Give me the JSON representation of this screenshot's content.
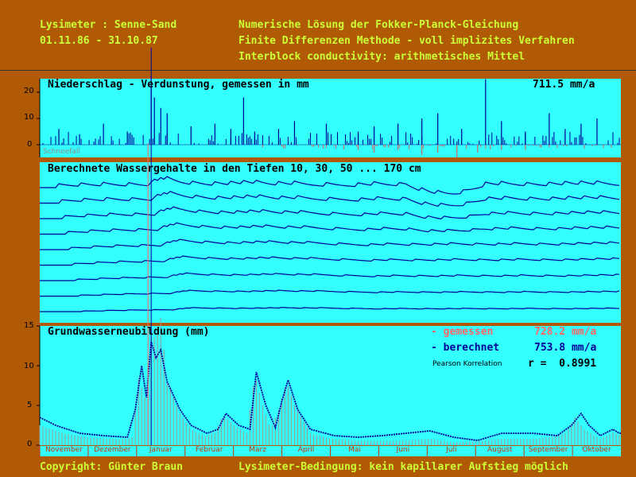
{
  "header": {
    "site": "Lysimeter : Senne-Sand",
    "period": "01.11.86 - 31.10.87",
    "line1": "Numerische Lösung der Fokker-Planck-Gleichung",
    "line2": "Finite Differenzen Methode - voll implizites Verfahren",
    "line3": "Interblock conductivity: arithmetisches Mittel"
  },
  "colors": {
    "background": "#b05a06",
    "panel": "#33ffff",
    "header_text": "#ccff33",
    "measured": "#ff6666",
    "computed": "#000099",
    "months": "#cc3300"
  },
  "panel1": {
    "title": "Niederschlag - Verdunstung, gemessen in mm",
    "total": "711.5 mm/a",
    "note": "Schneefall",
    "yticks": [
      "20",
      "10",
      "0"
    ]
  },
  "panel2": {
    "title": "Berechnete Wassergehalte in den Tiefen 10, 30, 50 ... 170 cm"
  },
  "panel3": {
    "title": "Grundwasserneubildung (mm)",
    "legend_measured": "- gemessen",
    "legend_measured_value": "728.2 mm/a",
    "legend_computed": "- berechnet",
    "legend_computed_value": "753.8 mm/a",
    "pearson_label": "Pearson Korrelation",
    "r_value": "r =  0.8991",
    "yticks": [
      "15",
      "10",
      "5",
      "0"
    ]
  },
  "months": [
    "November",
    "Dezember",
    "Januar",
    "Februar",
    "Marz",
    "April",
    "Mai",
    "Juni",
    "Juli",
    "August",
    "September",
    "Oktober"
  ],
  "footer": {
    "copyright": "Copyright: Günter Braun",
    "condition": "Lysimeter-Bedingung: kein kapillarer Aufstieg möglich"
  },
  "chart_data": [
    {
      "type": "bar",
      "title": "Niederschlag - Verdunstung, gemessen in mm",
      "ylabel": "mm",
      "ylim": [
        -5,
        25
      ],
      "x_unit": "day of hydrological year (1 = 01.11.86)",
      "total": "711.5 mm/a",
      "precipitation_peaks": [
        [
          12,
          6
        ],
        [
          25,
          4
        ],
        [
          40,
          8
        ],
        [
          55,
          5
        ],
        [
          70,
          26
        ],
        [
          72,
          18
        ],
        [
          76,
          14
        ],
        [
          80,
          12
        ],
        [
          95,
          7
        ],
        [
          110,
          8
        ],
        [
          120,
          6
        ],
        [
          128,
          18
        ],
        [
          135,
          5
        ],
        [
          150,
          6
        ],
        [
          160,
          9
        ],
        [
          180,
          8
        ],
        [
          200,
          5
        ],
        [
          210,
          7
        ],
        [
          225,
          8
        ],
        [
          240,
          10
        ],
        [
          250,
          12
        ],
        [
          265,
          6
        ],
        [
          280,
          25
        ],
        [
          290,
          9
        ],
        [
          305,
          5
        ],
        [
          320,
          12
        ],
        [
          330,
          6
        ],
        [
          340,
          8
        ],
        [
          350,
          10
        ]
      ],
      "evaporation": [
        [
          140,
          -1
        ],
        [
          200,
          -2
        ],
        [
          210,
          -3
        ],
        [
          225,
          -2
        ],
        [
          240,
          -4
        ],
        [
          250,
          -3
        ],
        [
          262,
          -5
        ],
        [
          275,
          -3
        ],
        [
          290,
          -2
        ],
        [
          305,
          -2
        ],
        [
          320,
          -1
        ]
      ]
    },
    {
      "type": "line",
      "title": "Berechnete Wassergehalte in den Tiefen 10, 30, 50 ... 170 cm",
      "depths_cm": [
        10,
        30,
        50,
        70,
        90,
        110,
        130,
        150,
        170
      ]
    },
    {
      "type": "line",
      "title": "Grundwasserneubildung (mm)",
      "ylim": [
        0,
        15
      ],
      "x_unit": "day of hydrological year (1 = 01.11.86)",
      "series": [
        {
          "name": "gemessen",
          "total": "728.2 mm/a",
          "points": [
            [
              0,
              2.5
            ],
            [
              15,
              1.5
            ],
            [
              30,
              1.0
            ],
            [
              50,
              0.7
            ],
            [
              58,
              1.0
            ],
            [
              62,
              8.5
            ],
            [
              66,
              6
            ],
            [
              70,
              14.5
            ],
            [
              72,
              13.5
            ],
            [
              76,
              16
            ],
            [
              80,
              8
            ],
            [
              88,
              4
            ],
            [
              95,
              2
            ],
            [
              103,
              1.2
            ],
            [
              110,
              1.5
            ],
            [
              115,
              3.8
            ],
            [
              122,
              2.5
            ],
            [
              130,
              1.5
            ],
            [
              135,
              9.0
            ],
            [
              140,
              5
            ],
            [
              145,
              2
            ],
            [
              150,
              4.5
            ],
            [
              155,
              8.0
            ],
            [
              160,
              5
            ],
            [
              170,
              1.5
            ],
            [
              185,
              0.7
            ],
            [
              200,
              0.6
            ],
            [
              230,
              0.6
            ],
            [
              245,
              0.8
            ],
            [
              260,
              0.4
            ],
            [
              275,
              0.5
            ],
            [
              290,
              0.8
            ],
            [
              310,
              0.8
            ],
            [
              320,
              1.0
            ],
            [
              330,
              1.5
            ],
            [
              336,
              3.5
            ],
            [
              342,
              2.0
            ],
            [
              352,
              0.8
            ],
            [
              360,
              1.6
            ],
            [
              364,
              1.3
            ]
          ]
        },
        {
          "name": "berechnet",
          "total": "753.8 mm/a",
          "points": [
            [
              0,
              3.5
            ],
            [
              10,
              2.5
            ],
            [
              25,
              1.5
            ],
            [
              40,
              1.2
            ],
            [
              55,
              1.0
            ],
            [
              60,
              4.5
            ],
            [
              64,
              10.0
            ],
            [
              67,
              6
            ],
            [
              70,
              13
            ],
            [
              73,
              11
            ],
            [
              76,
              12
            ],
            [
              80,
              8
            ],
            [
              88,
              4.5
            ],
            [
              95,
              2.5
            ],
            [
              105,
              1.5
            ],
            [
              112,
              2.0
            ],
            [
              117,
              4.0
            ],
            [
              125,
              2.5
            ],
            [
              132,
              2.0
            ],
            [
              136,
              9.2
            ],
            [
              142,
              5
            ],
            [
              148,
              2.2
            ],
            [
              152,
              5.5
            ],
            [
              156,
              8.2
            ],
            [
              162,
              4.5
            ],
            [
              170,
              2.0
            ],
            [
              185,
              1.2
            ],
            [
              200,
              1.0
            ],
            [
              215,
              1.2
            ],
            [
              230,
              1.5
            ],
            [
              245,
              1.8
            ],
            [
              260,
              1.0
            ],
            [
              275,
              0.6
            ],
            [
              290,
              1.5
            ],
            [
              310,
              1.5
            ],
            [
              325,
              1.2
            ],
            [
              334,
              2.5
            ],
            [
              340,
              4.0
            ],
            [
              345,
              2.5
            ],
            [
              352,
              1.2
            ],
            [
              360,
              2.0
            ],
            [
              364,
              1.5
            ]
          ]
        }
      ]
    }
  ]
}
